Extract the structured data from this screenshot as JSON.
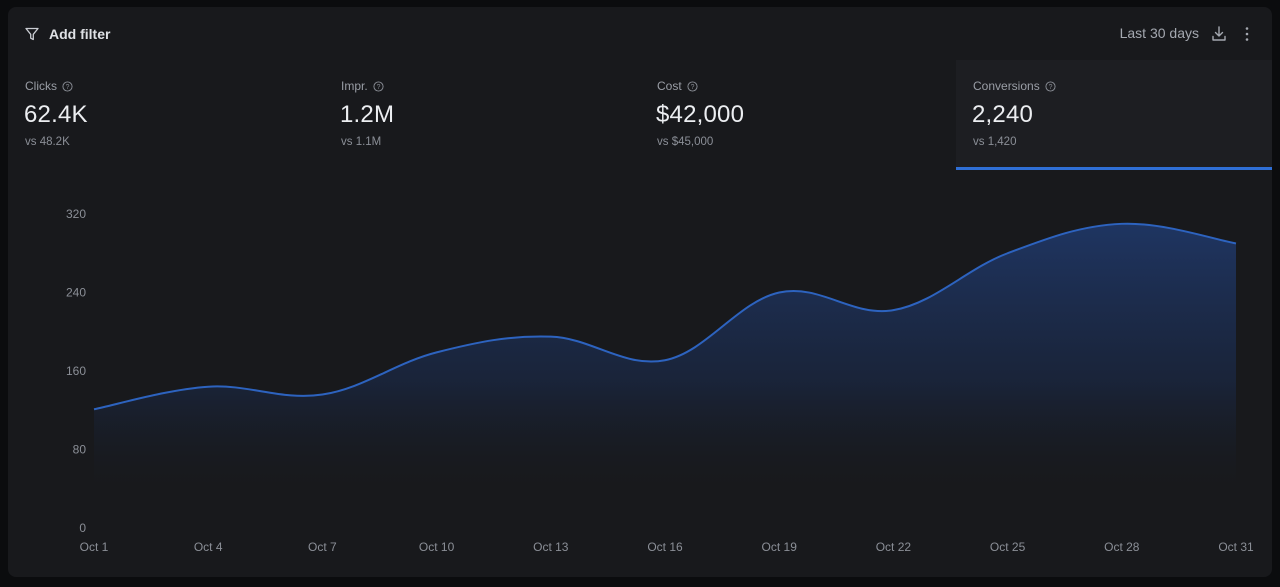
{
  "toolbar": {
    "filter_label": "Add filter",
    "date_range": "Last 30 days"
  },
  "metrics": [
    {
      "label": "Clicks",
      "value": "62.4K",
      "compare": "vs 48.2K",
      "active": false
    },
    {
      "label": "Impr.",
      "value": "1.2M",
      "compare": "vs 1.1M",
      "active": false
    },
    {
      "label": "Cost",
      "value": "$42,000",
      "compare": "vs $45,000",
      "active": false
    },
    {
      "label": "Conversions",
      "value": "2,240",
      "compare": "vs 1,420",
      "active": true
    }
  ],
  "colors": {
    "accent": "#2f6fd6",
    "line": "#2d63bf"
  },
  "chart_data": {
    "type": "area",
    "x": [
      "Oct 1",
      "Oct 4",
      "Oct 7",
      "Oct 10",
      "Oct 13",
      "Oct 16",
      "Oct 19",
      "Oct 22",
      "Oct 25",
      "Oct 28",
      "Oct 31"
    ],
    "x_tick_labels": [
      "Oct 1",
      "Oct 4",
      "Oct 7",
      "Oct 10",
      "Oct 13",
      "Oct 16",
      "Oct 19",
      "Oct 22",
      "Oct 25",
      "Oct 28",
      "Oct 31"
    ],
    "series": [
      {
        "values": [
          121,
          144,
          136,
          179,
          195,
          171,
          240,
          222,
          280,
          310,
          290
        ]
      }
    ],
    "y_ticks": [
      0,
      80,
      160,
      240,
      320
    ],
    "ylim": [
      0,
      320
    ],
    "grid": false
  }
}
